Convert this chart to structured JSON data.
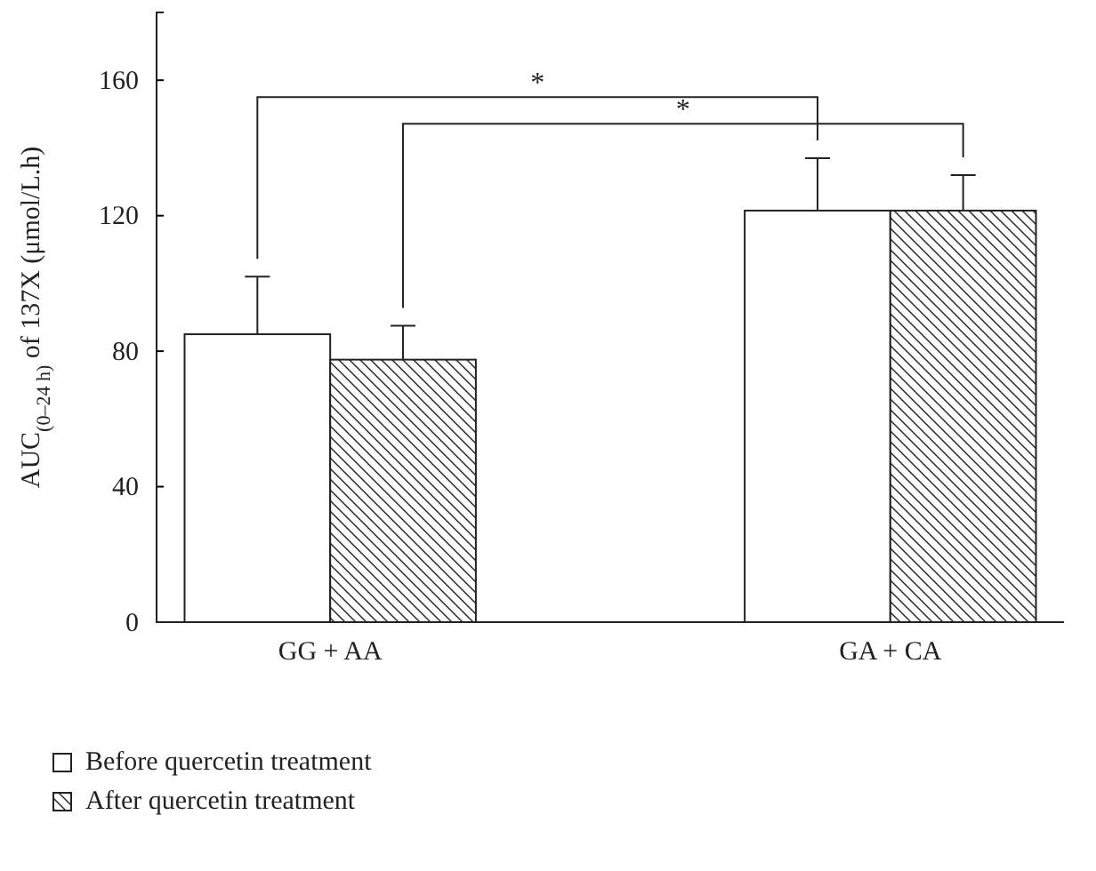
{
  "chart_data": {
    "type": "bar",
    "ylabel": "AUC$_{(0–24 h)}$ of 137X (μmol/L.h)",
    "categories": [
      "GG + AA",
      "GA + CA"
    ],
    "series": [
      {
        "name": "Before quercetin treatment",
        "color": "#ffffff",
        "values": [
          85,
          121.5
        ],
        "errors": [
          [
            85,
            102
          ],
          [
            121.5,
            137
          ]
        ]
      },
      {
        "name": "After quercetin treatment",
        "color": "#222222",
        "values": [
          77.5,
          121.5
        ],
        "errors": [
          [
            77.5,
            87.5
          ],
          [
            121.5,
            132
          ]
        ]
      }
    ],
    "ylim": [
      0,
      180
    ],
    "yticks": [
      0,
      40,
      80,
      120,
      160
    ],
    "annotations": [
      "*",
      "*"
    ],
    "legend": "bottom left",
    "grid": false
  }
}
